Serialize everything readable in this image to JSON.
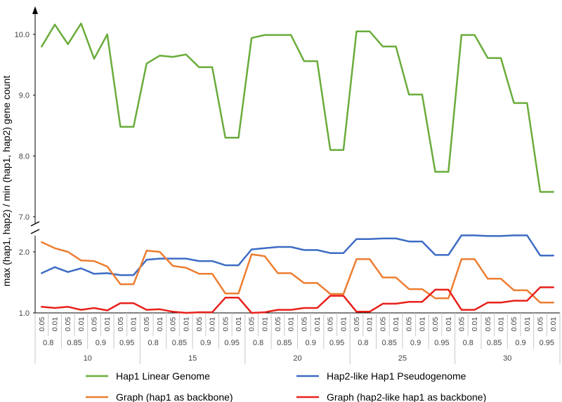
{
  "chart_data": {
    "type": "line",
    "ylabel": "max (hap1, hap2) / min (hap1, hap2) gene count",
    "y_axis_break": {
      "lower_range": [
        1.0,
        2.0
      ],
      "upper_range": [
        7.0,
        10.0
      ]
    },
    "ylim": [
      1.0,
      10.3
    ],
    "y_ticks": [
      "1.0",
      "2.0",
      "7.0",
      "8.0",
      "9.0",
      "10.0"
    ],
    "x_levels": {
      "pvalues": [
        "0.05",
        "0.01"
      ],
      "thresholds": [
        "0.8",
        "0.85",
        "0.9",
        "0.95"
      ],
      "groups": [
        "10",
        "15",
        "20",
        "25",
        "30"
      ]
    },
    "legend_position": "bottom",
    "series": [
      {
        "name": "Hap1 Linear Genome",
        "color": "#6aac3b",
        "values": [
          9.8,
          10.16,
          9.84,
          10.18,
          9.6,
          10.0,
          8.48,
          8.48,
          9.52,
          9.65,
          9.63,
          9.67,
          9.46,
          9.46,
          8.3,
          8.3,
          9.94,
          9.99,
          9.99,
          9.99,
          9.56,
          9.56,
          8.1,
          8.1,
          10.05,
          10.05,
          9.8,
          9.8,
          9.01,
          9.01,
          7.74,
          7.74,
          9.99,
          9.99,
          9.61,
          9.61,
          8.87,
          8.87,
          7.41,
          7.41
        ]
      },
      {
        "name": "Hap2-like Hap1 Pseudogenome",
        "color": "#3d6cc4",
        "values": [
          1.65,
          1.75,
          1.67,
          1.73,
          1.64,
          1.65,
          1.62,
          1.62,
          1.87,
          1.89,
          1.89,
          1.89,
          1.85,
          1.85,
          1.78,
          1.78,
          2.04,
          2.06,
          2.08,
          2.08,
          2.03,
          2.03,
          1.98,
          1.98,
          2.21,
          2.21,
          2.22,
          2.22,
          2.17,
          2.17,
          1.95,
          1.95,
          2.27,
          2.27,
          2.26,
          2.26,
          2.27,
          2.27,
          1.94,
          1.94
        ]
      },
      {
        "name": "Graph (hap1 as backbone)",
        "color": "#ed7d31",
        "values": [
          2.16,
          2.06,
          2.0,
          1.86,
          1.85,
          1.76,
          1.47,
          1.47,
          2.02,
          2.0,
          1.77,
          1.74,
          1.64,
          1.64,
          1.32,
          1.32,
          1.96,
          1.93,
          1.65,
          1.65,
          1.49,
          1.49,
          1.31,
          1.31,
          1.88,
          1.88,
          1.58,
          1.58,
          1.39,
          1.39,
          1.24,
          1.24,
          1.88,
          1.88,
          1.56,
          1.56,
          1.37,
          1.37,
          1.17,
          1.17
        ]
      },
      {
        "name": "Graph (hap2-like hap1 as backbone)",
        "color": "#e8201b",
        "values": [
          1.1,
          1.08,
          1.1,
          1.05,
          1.08,
          1.04,
          1.16,
          1.16,
          1.05,
          1.06,
          1.02,
          1.0,
          1.01,
          1.01,
          1.25,
          1.25,
          1.0,
          1.01,
          1.05,
          1.05,
          1.08,
          1.08,
          1.28,
          1.28,
          1.02,
          1.02,
          1.15,
          1.15,
          1.18,
          1.18,
          1.38,
          1.38,
          1.05,
          1.05,
          1.17,
          1.17,
          1.2,
          1.2,
          1.42,
          1.42
        ]
      }
    ]
  }
}
